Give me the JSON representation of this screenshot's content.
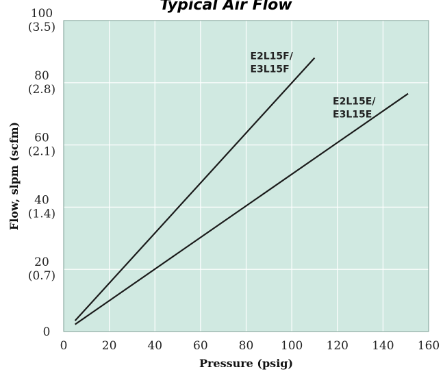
{
  "chart_data": {
    "type": "line",
    "title": "Typical Air Flow",
    "xlabel": "Pressure (psig)",
    "ylabel": "Flow, slpm (scfm)",
    "xlim": [
      0,
      160
    ],
    "ylim": [
      0,
      100
    ],
    "grid": true,
    "plot_background": "#d0e9e1",
    "line_color": "#1a1a1a",
    "x_ticks": [
      {
        "value": 0,
        "label": "0"
      },
      {
        "value": 20,
        "label": "20"
      },
      {
        "value": 40,
        "label": "40"
      },
      {
        "value": 60,
        "label": "60"
      },
      {
        "value": 80,
        "label": "80"
      },
      {
        "value": 100,
        "label": "100"
      },
      {
        "value": 120,
        "label": "120"
      },
      {
        "value": 140,
        "label": "140"
      },
      {
        "value": 160,
        "label": "160"
      }
    ],
    "y_ticks": [
      {
        "value": 0,
        "label": "0",
        "sub": ""
      },
      {
        "value": 20,
        "label": "20",
        "sub": "(0.7)"
      },
      {
        "value": 40,
        "label": "40",
        "sub": "(1.4)"
      },
      {
        "value": 60,
        "label": "60",
        "sub": "(2.1)"
      },
      {
        "value": 80,
        "label": "80",
        "sub": "(2.8)"
      },
      {
        "value": 100,
        "label": "100",
        "sub": "(3.5)"
      }
    ],
    "series": [
      {
        "name_lines": [
          "E2L15F/",
          "E3L15F"
        ],
        "x": [
          5,
          110
        ],
        "y": [
          3.5,
          88
        ]
      },
      {
        "name_lines": [
          "E2L15E/",
          "E3L15E"
        ],
        "x": [
          5,
          151
        ],
        "y": [
          2.3,
          76.5
        ]
      }
    ]
  }
}
